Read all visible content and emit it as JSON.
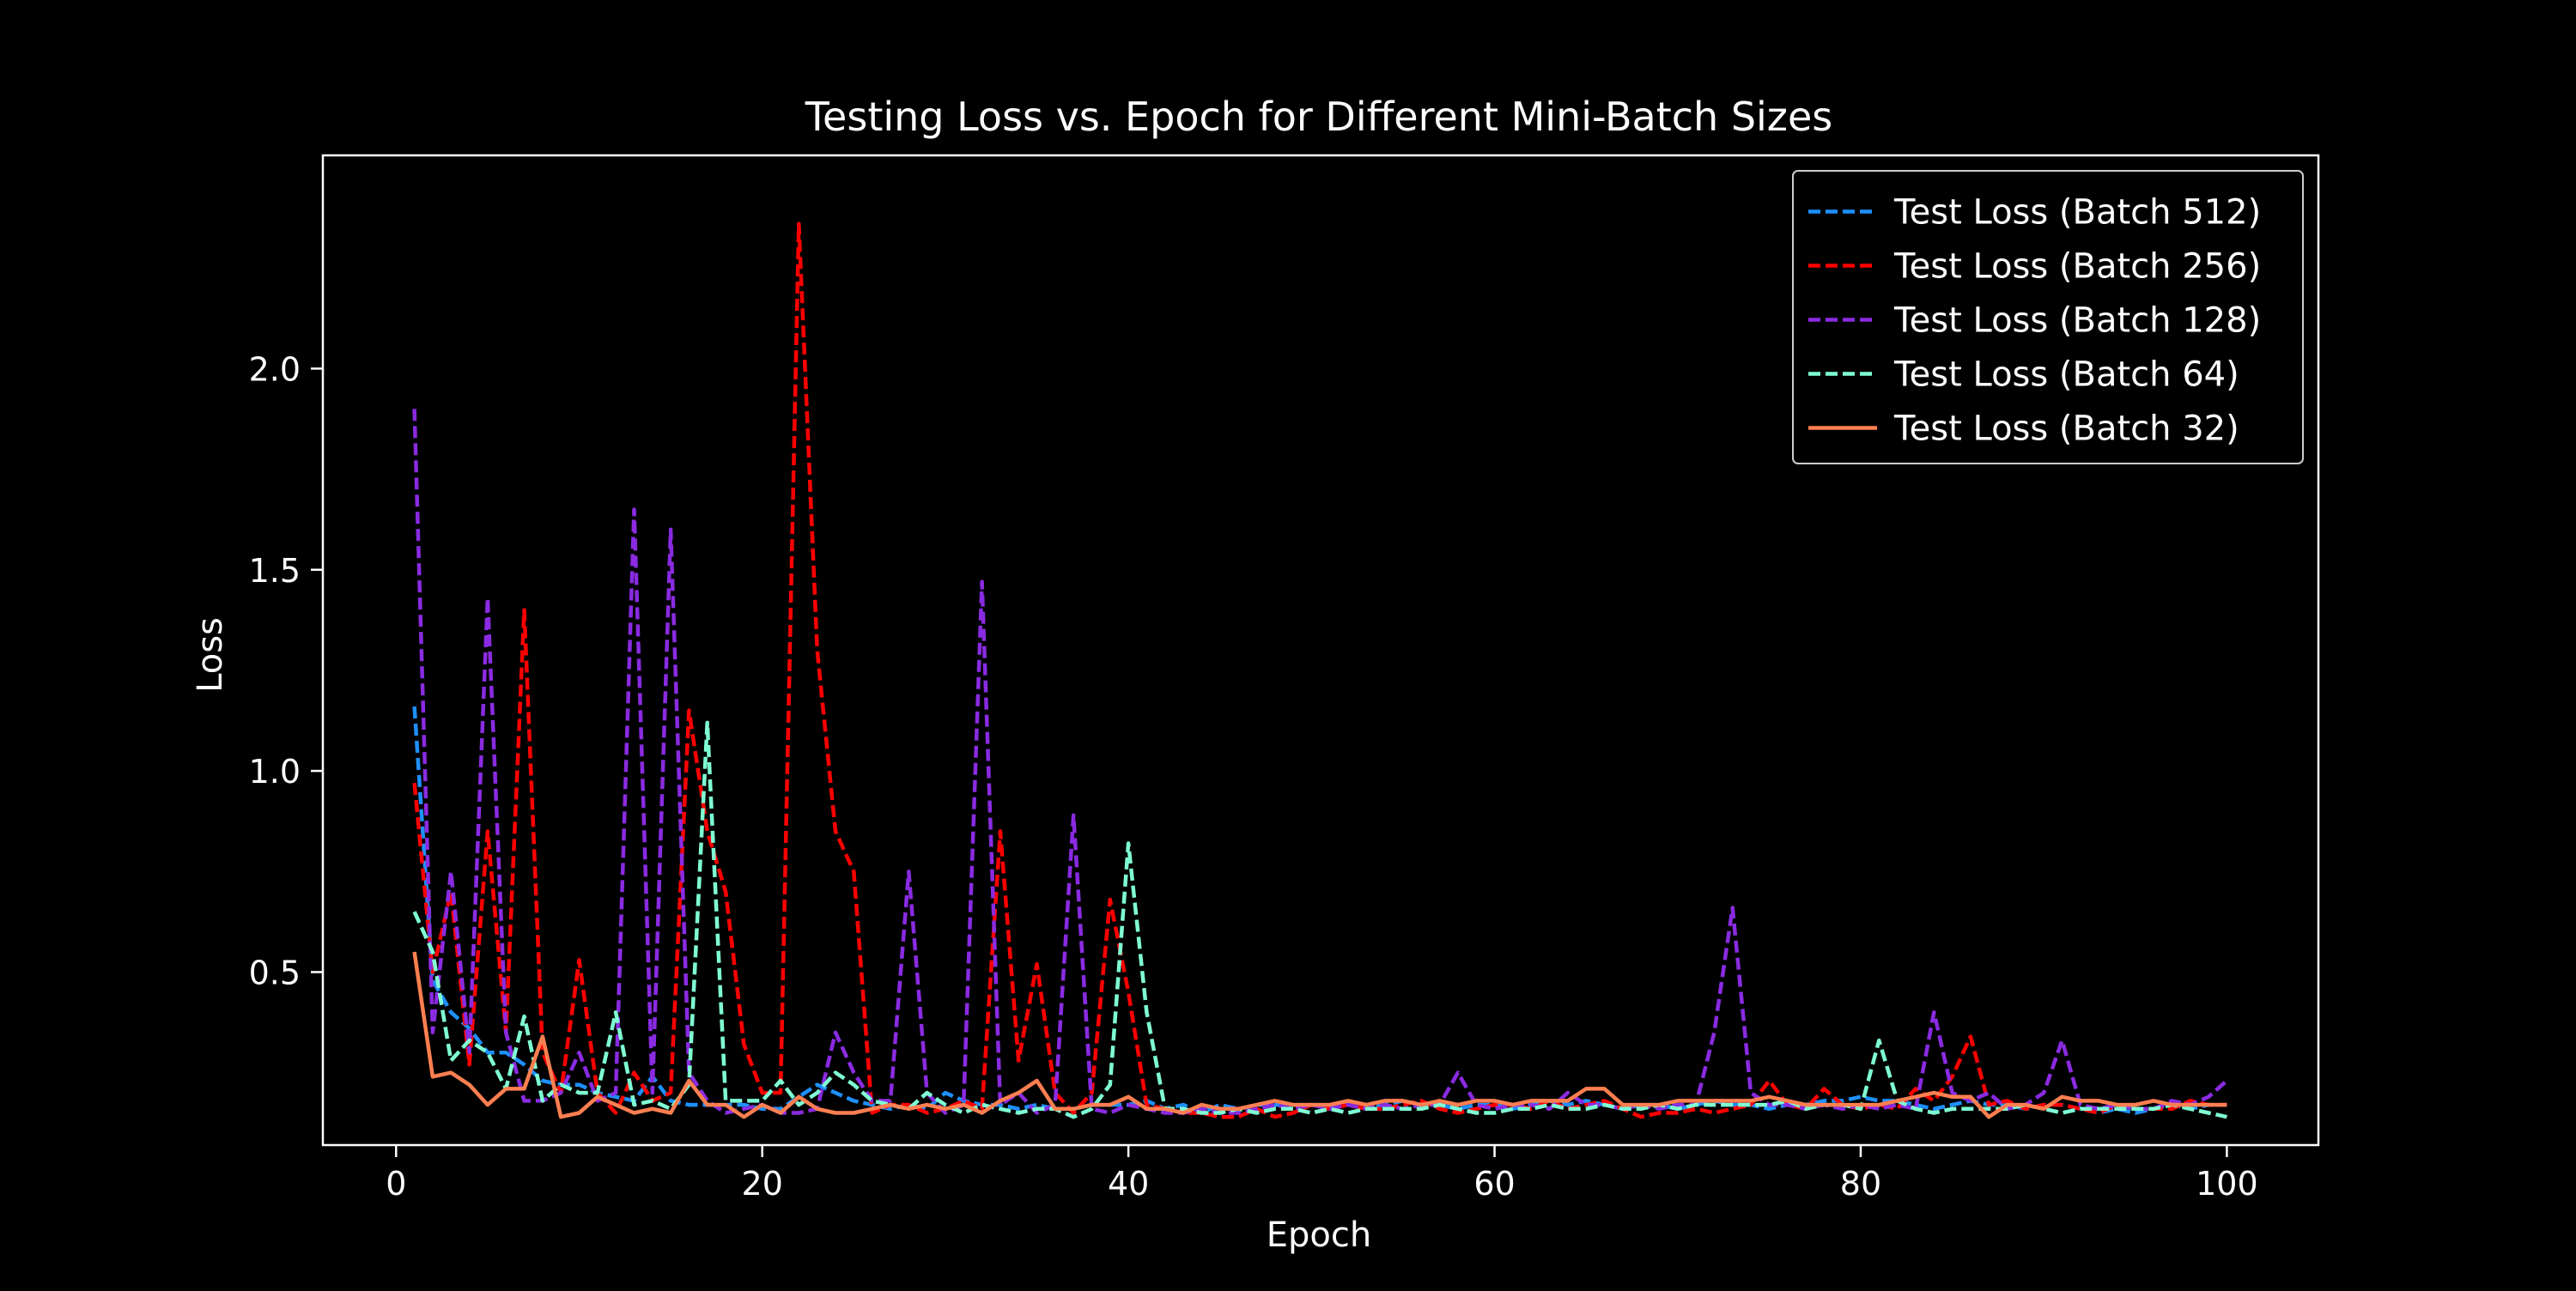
{
  "chart_data": {
    "type": "line",
    "title": "Testing Loss vs. Epoch for Different Mini-Batch Sizes",
    "xlabel": "Epoch",
    "ylabel": "Loss",
    "xlim": [
      -4,
      105
    ],
    "ylim": [
      0.07,
      2.53
    ],
    "xticks": [
      0,
      20,
      40,
      60,
      80,
      100
    ],
    "yticks": [
      0.5,
      1.0,
      1.5,
      2.0
    ],
    "ytick_labels": [
      "0.5",
      "1.0",
      "1.5",
      "2.0"
    ],
    "grid": false,
    "legend_position": "upper right",
    "background": "#000000",
    "foreground": "#ffffff",
    "series": [
      {
        "name": "Test Loss (Batch 512)",
        "color": "#1e90ff",
        "style": "dashed",
        "x": [
          1,
          2,
          3,
          4,
          5,
          6,
          7,
          8,
          9,
          10,
          11,
          12,
          13,
          14,
          15,
          16,
          17,
          18,
          19,
          20,
          21,
          22,
          23,
          24,
          25,
          26,
          27,
          28,
          29,
          30,
          31,
          32,
          33,
          34,
          35,
          36,
          37,
          38,
          39,
          40,
          41,
          42,
          43,
          44,
          45,
          46,
          47,
          48,
          49,
          50,
          51,
          52,
          53,
          54,
          55,
          56,
          57,
          58,
          59,
          60,
          61,
          62,
          63,
          64,
          65,
          66,
          67,
          68,
          69,
          70,
          71,
          72,
          73,
          74,
          75,
          76,
          77,
          78,
          79,
          80,
          81,
          82,
          83,
          84,
          85,
          86,
          87,
          88,
          89,
          90,
          91,
          92,
          93,
          94,
          95,
          96,
          97,
          98,
          99,
          100
        ],
        "y": [
          1.16,
          0.48,
          0.4,
          0.36,
          0.3,
          0.3,
          0.27,
          0.23,
          0.22,
          0.22,
          0.2,
          0.19,
          0.18,
          0.24,
          0.18,
          0.17,
          0.17,
          0.17,
          0.17,
          0.16,
          0.16,
          0.19,
          0.22,
          0.2,
          0.18,
          0.17,
          0.16,
          0.17,
          0.16,
          0.2,
          0.18,
          0.17,
          0.17,
          0.16,
          0.17,
          0.16,
          0.16,
          0.17,
          0.17,
          0.17,
          0.18,
          0.16,
          0.17,
          0.15,
          0.17,
          0.16,
          0.17,
          0.17,
          0.17,
          0.17,
          0.17,
          0.17,
          0.16,
          0.17,
          0.18,
          0.17,
          0.17,
          0.16,
          0.17,
          0.17,
          0.16,
          0.17,
          0.18,
          0.17,
          0.18,
          0.17,
          0.16,
          0.17,
          0.17,
          0.16,
          0.17,
          0.18,
          0.17,
          0.17,
          0.16,
          0.17,
          0.17,
          0.18,
          0.18,
          0.19,
          0.18,
          0.18,
          0.17,
          0.16,
          0.17,
          0.18,
          0.17,
          0.17,
          0.16,
          0.17,
          0.17,
          0.16,
          0.15,
          0.16,
          0.15,
          0.16,
          0.17,
          0.16,
          0.17,
          0.17
        ]
      },
      {
        "name": "Test Loss (Batch 256)",
        "color": "#ff0000",
        "style": "dashed",
        "x": [
          1,
          2,
          3,
          4,
          5,
          6,
          7,
          8,
          9,
          10,
          11,
          12,
          13,
          14,
          15,
          16,
          17,
          18,
          19,
          20,
          21,
          22,
          23,
          24,
          25,
          26,
          27,
          28,
          29,
          30,
          31,
          32,
          33,
          34,
          35,
          36,
          37,
          38,
          39,
          40,
          41,
          42,
          43,
          44,
          45,
          46,
          47,
          48,
          49,
          50,
          51,
          52,
          53,
          54,
          55,
          56,
          57,
          58,
          59,
          60,
          61,
          62,
          63,
          64,
          65,
          66,
          67,
          68,
          69,
          70,
          71,
          72,
          73,
          74,
          75,
          76,
          77,
          78,
          79,
          80,
          81,
          82,
          83,
          84,
          85,
          86,
          87,
          88,
          89,
          90,
          91,
          92,
          93,
          94,
          95,
          96,
          97,
          98,
          99,
          100
        ],
        "y": [
          0.97,
          0.5,
          0.7,
          0.27,
          0.85,
          0.35,
          1.4,
          0.3,
          0.2,
          0.53,
          0.2,
          0.15,
          0.25,
          0.18,
          0.2,
          1.15,
          0.85,
          0.7,
          0.32,
          0.2,
          0.2,
          2.36,
          1.3,
          0.85,
          0.75,
          0.15,
          0.17,
          0.17,
          0.15,
          0.16,
          0.18,
          0.16,
          0.85,
          0.28,
          0.52,
          0.2,
          0.15,
          0.2,
          0.68,
          0.45,
          0.17,
          0.16,
          0.15,
          0.15,
          0.14,
          0.14,
          0.16,
          0.14,
          0.15,
          0.17,
          0.16,
          0.17,
          0.16,
          0.16,
          0.17,
          0.18,
          0.16,
          0.15,
          0.16,
          0.17,
          0.17,
          0.16,
          0.18,
          0.16,
          0.17,
          0.18,
          0.16,
          0.14,
          0.15,
          0.15,
          0.16,
          0.15,
          0.16,
          0.17,
          0.23,
          0.17,
          0.16,
          0.21,
          0.17,
          0.16,
          0.17,
          0.16,
          0.21,
          0.18,
          0.24,
          0.34,
          0.17,
          0.18,
          0.16,
          0.17,
          0.17,
          0.16,
          0.15,
          0.17,
          0.16,
          0.16,
          0.16,
          0.18,
          0.17,
          0.17
        ]
      },
      {
        "name": "Test Loss (Batch 128)",
        "color": "#8a2be2",
        "style": "dashed",
        "x": [
          1,
          2,
          3,
          4,
          5,
          6,
          7,
          8,
          9,
          10,
          11,
          12,
          13,
          14,
          15,
          16,
          17,
          18,
          19,
          20,
          21,
          22,
          23,
          24,
          25,
          26,
          27,
          28,
          29,
          30,
          31,
          32,
          33,
          34,
          35,
          36,
          37,
          38,
          39,
          40,
          41,
          42,
          43,
          44,
          45,
          46,
          47,
          48,
          49,
          50,
          51,
          52,
          53,
          54,
          55,
          56,
          57,
          58,
          59,
          60,
          61,
          62,
          63,
          64,
          65,
          66,
          67,
          68,
          69,
          70,
          71,
          72,
          73,
          74,
          75,
          76,
          77,
          78,
          79,
          80,
          81,
          82,
          83,
          84,
          85,
          86,
          87,
          88,
          89,
          90,
          91,
          92,
          93,
          94,
          95,
          96,
          97,
          98,
          99,
          100
        ],
        "y": [
          1.9,
          0.35,
          0.75,
          0.3,
          1.43,
          0.35,
          0.18,
          0.18,
          0.2,
          0.3,
          0.18,
          0.2,
          1.65,
          0.2,
          1.6,
          0.25,
          0.18,
          0.15,
          0.16,
          0.17,
          0.15,
          0.15,
          0.16,
          0.35,
          0.25,
          0.18,
          0.18,
          0.75,
          0.2,
          0.15,
          0.17,
          1.47,
          0.17,
          0.2,
          0.15,
          0.17,
          0.89,
          0.16,
          0.15,
          0.17,
          0.16,
          0.15,
          0.15,
          0.16,
          0.15,
          0.15,
          0.16,
          0.17,
          0.16,
          0.17,
          0.16,
          0.17,
          0.16,
          0.17,
          0.16,
          0.17,
          0.17,
          0.25,
          0.17,
          0.16,
          0.17,
          0.17,
          0.16,
          0.2,
          0.17,
          0.17,
          0.16,
          0.17,
          0.16,
          0.17,
          0.17,
          0.35,
          0.66,
          0.2,
          0.17,
          0.17,
          0.16,
          0.17,
          0.16,
          0.17,
          0.16,
          0.17,
          0.16,
          0.4,
          0.2,
          0.18,
          0.2,
          0.16,
          0.17,
          0.2,
          0.33,
          0.17,
          0.16,
          0.17,
          0.16,
          0.16,
          0.18,
          0.17,
          0.19,
          0.23
        ]
      },
      {
        "name": "Test Loss (Batch 64)",
        "color": "#7fffd4",
        "style": "dashed",
        "x": [
          1,
          2,
          3,
          4,
          5,
          6,
          7,
          8,
          9,
          10,
          11,
          12,
          13,
          14,
          15,
          16,
          17,
          18,
          19,
          20,
          21,
          22,
          23,
          24,
          25,
          26,
          27,
          28,
          29,
          30,
          31,
          32,
          33,
          34,
          35,
          36,
          37,
          38,
          39,
          40,
          41,
          42,
          43,
          44,
          45,
          46,
          47,
          48,
          49,
          50,
          51,
          52,
          53,
          54,
          55,
          56,
          57,
          58,
          59,
          60,
          61,
          62,
          63,
          64,
          65,
          66,
          67,
          68,
          69,
          70,
          71,
          72,
          73,
          74,
          75,
          76,
          77,
          78,
          79,
          80,
          81,
          82,
          83,
          84,
          85,
          86,
          87,
          88,
          89,
          90,
          91,
          92,
          93,
          94,
          95,
          96,
          97,
          98,
          99,
          100
        ],
        "y": [
          0.65,
          0.55,
          0.28,
          0.33,
          0.3,
          0.21,
          0.39,
          0.18,
          0.22,
          0.2,
          0.2,
          0.4,
          0.17,
          0.18,
          0.16,
          0.22,
          1.12,
          0.18,
          0.18,
          0.18,
          0.23,
          0.17,
          0.2,
          0.25,
          0.22,
          0.18,
          0.17,
          0.16,
          0.2,
          0.17,
          0.15,
          0.17,
          0.16,
          0.15,
          0.16,
          0.16,
          0.14,
          0.16,
          0.22,
          0.82,
          0.4,
          0.16,
          0.16,
          0.15,
          0.15,
          0.16,
          0.15,
          0.16,
          0.16,
          0.15,
          0.16,
          0.15,
          0.16,
          0.16,
          0.16,
          0.16,
          0.17,
          0.16,
          0.15,
          0.15,
          0.16,
          0.16,
          0.17,
          0.16,
          0.16,
          0.17,
          0.16,
          0.16,
          0.17,
          0.16,
          0.17,
          0.17,
          0.17,
          0.17,
          0.17,
          0.18,
          0.16,
          0.17,
          0.17,
          0.16,
          0.33,
          0.18,
          0.16,
          0.15,
          0.16,
          0.16,
          0.16,
          0.16,
          0.17,
          0.16,
          0.15,
          0.16,
          0.16,
          0.16,
          0.16,
          0.16,
          0.17,
          0.16,
          0.15,
          0.14
        ]
      },
      {
        "name": "Test Loss (Batch 32)",
        "color": "#ff7f50",
        "style": "solid",
        "x": [
          1,
          2,
          3,
          4,
          5,
          6,
          7,
          8,
          9,
          10,
          11,
          12,
          13,
          14,
          15,
          16,
          17,
          18,
          19,
          20,
          21,
          22,
          23,
          24,
          25,
          26,
          27,
          28,
          29,
          30,
          31,
          32,
          33,
          34,
          35,
          36,
          37,
          38,
          39,
          40,
          41,
          42,
          43,
          44,
          45,
          46,
          47,
          48,
          49,
          50,
          51,
          52,
          53,
          54,
          55,
          56,
          57,
          58,
          59,
          60,
          61,
          62,
          63,
          64,
          65,
          66,
          67,
          68,
          69,
          70,
          71,
          72,
          73,
          74,
          75,
          76,
          77,
          78,
          79,
          80,
          81,
          82,
          83,
          84,
          85,
          86,
          87,
          88,
          89,
          90,
          91,
          92,
          93,
          94,
          95,
          96,
          97,
          98,
          99,
          100
        ],
        "y": [
          0.55,
          0.24,
          0.25,
          0.22,
          0.17,
          0.21,
          0.21,
          0.34,
          0.14,
          0.15,
          0.19,
          0.17,
          0.15,
          0.16,
          0.15,
          0.23,
          0.17,
          0.17,
          0.14,
          0.17,
          0.15,
          0.19,
          0.16,
          0.15,
          0.15,
          0.16,
          0.17,
          0.16,
          0.17,
          0.16,
          0.17,
          0.15,
          0.18,
          0.2,
          0.23,
          0.16,
          0.16,
          0.17,
          0.17,
          0.19,
          0.16,
          0.16,
          0.15,
          0.17,
          0.16,
          0.16,
          0.17,
          0.18,
          0.17,
          0.17,
          0.17,
          0.18,
          0.17,
          0.18,
          0.18,
          0.17,
          0.18,
          0.17,
          0.18,
          0.18,
          0.17,
          0.18,
          0.18,
          0.18,
          0.21,
          0.21,
          0.17,
          0.17,
          0.17,
          0.18,
          0.18,
          0.18,
          0.18,
          0.18,
          0.19,
          0.18,
          0.17,
          0.17,
          0.17,
          0.17,
          0.17,
          0.18,
          0.19,
          0.2,
          0.19,
          0.19,
          0.14,
          0.17,
          0.17,
          0.16,
          0.19,
          0.18,
          0.18,
          0.17,
          0.17,
          0.18,
          0.17,
          0.17,
          0.17,
          0.17
        ]
      }
    ]
  }
}
